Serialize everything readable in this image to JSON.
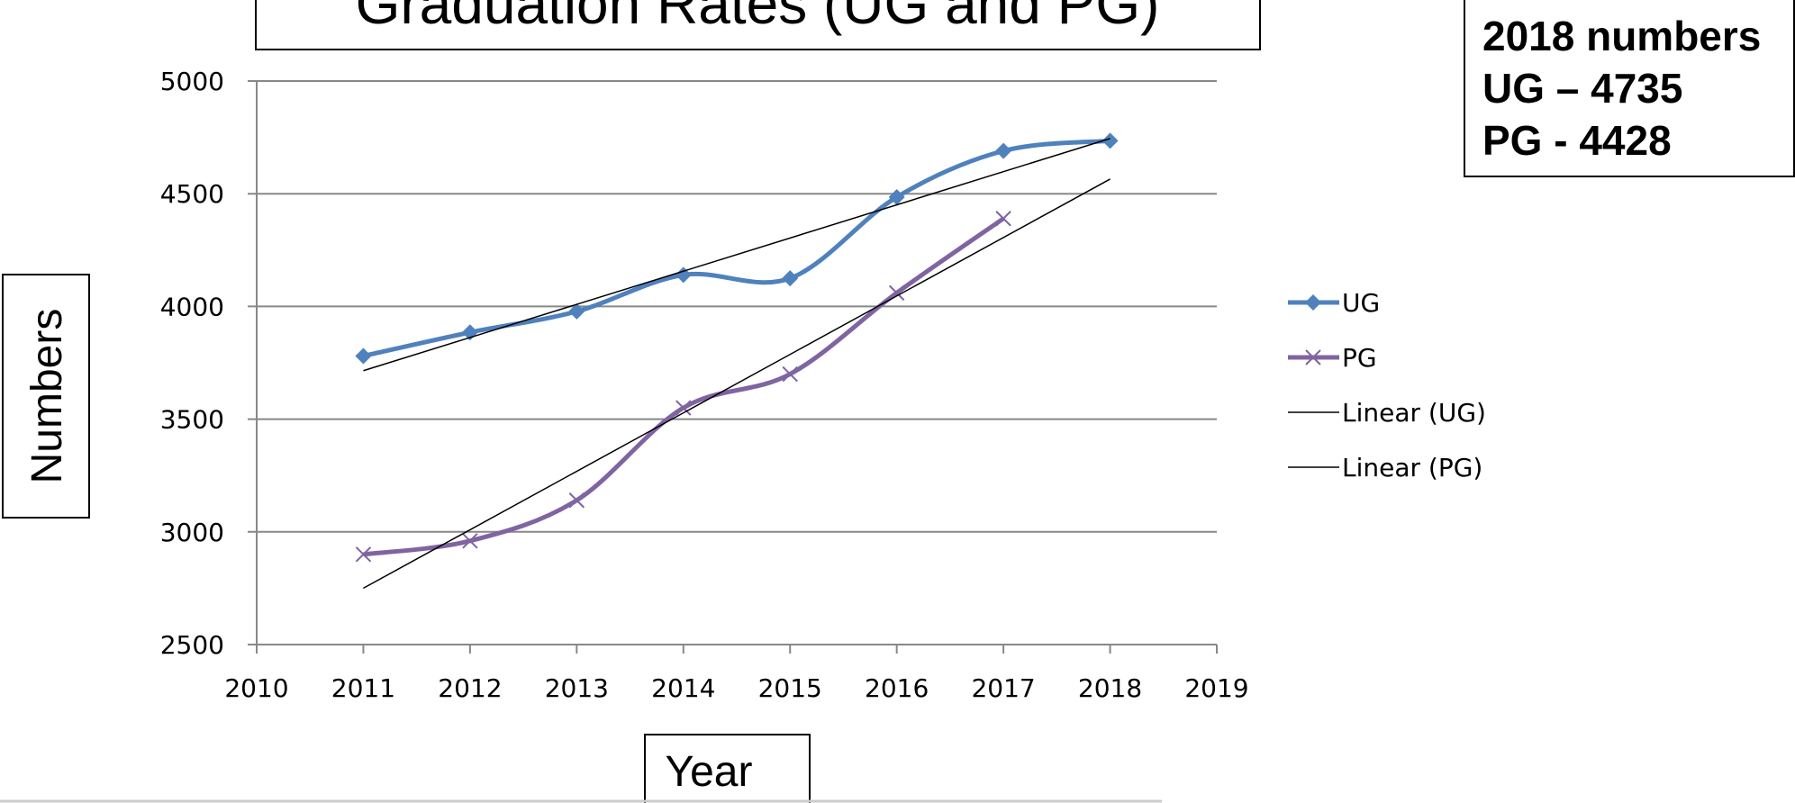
{
  "chart_data": {
    "type": "line",
    "title": "Graduation Rates (UG and PG)",
    "xlabel": "Year",
    "ylabel": "Numbers",
    "annotation": [
      "2018 numbers",
      "UG – 4735",
      "PG - 4428"
    ],
    "x": [
      2011,
      2012,
      2013,
      2014,
      2015,
      2016,
      2017,
      2018
    ],
    "series": [
      {
        "name": "UG",
        "color": "#4f81bd",
        "marker": "diamond",
        "values": [
          3780,
          3885,
          3978,
          4140,
          4125,
          4485,
          4690,
          4735
        ]
      },
      {
        "name": "PG",
        "color": "#8064a2",
        "marker": "x",
        "values": [
          2900,
          2960,
          3140,
          3550,
          3700,
          4060,
          4390,
          null
        ]
      }
    ],
    "trendlines": [
      {
        "name": "Linear (UG)",
        "color": "#000000",
        "x": [
          2011,
          2018
        ],
        "values": [
          3715,
          4745
        ]
      },
      {
        "name": "Linear (PG)",
        "color": "#000000",
        "x": [
          2011,
          2018
        ],
        "values": [
          2750,
          4565
        ]
      }
    ],
    "xlim": [
      2010,
      2019
    ],
    "xticks": [
      2010,
      2011,
      2012,
      2013,
      2014,
      2015,
      2016,
      2017,
      2018,
      2019
    ],
    "ylim": [
      2500,
      5000
    ],
    "yticks": [
      2500,
      3000,
      3500,
      4000,
      4500,
      5000
    ],
    "grid": true,
    "legend": "right"
  }
}
